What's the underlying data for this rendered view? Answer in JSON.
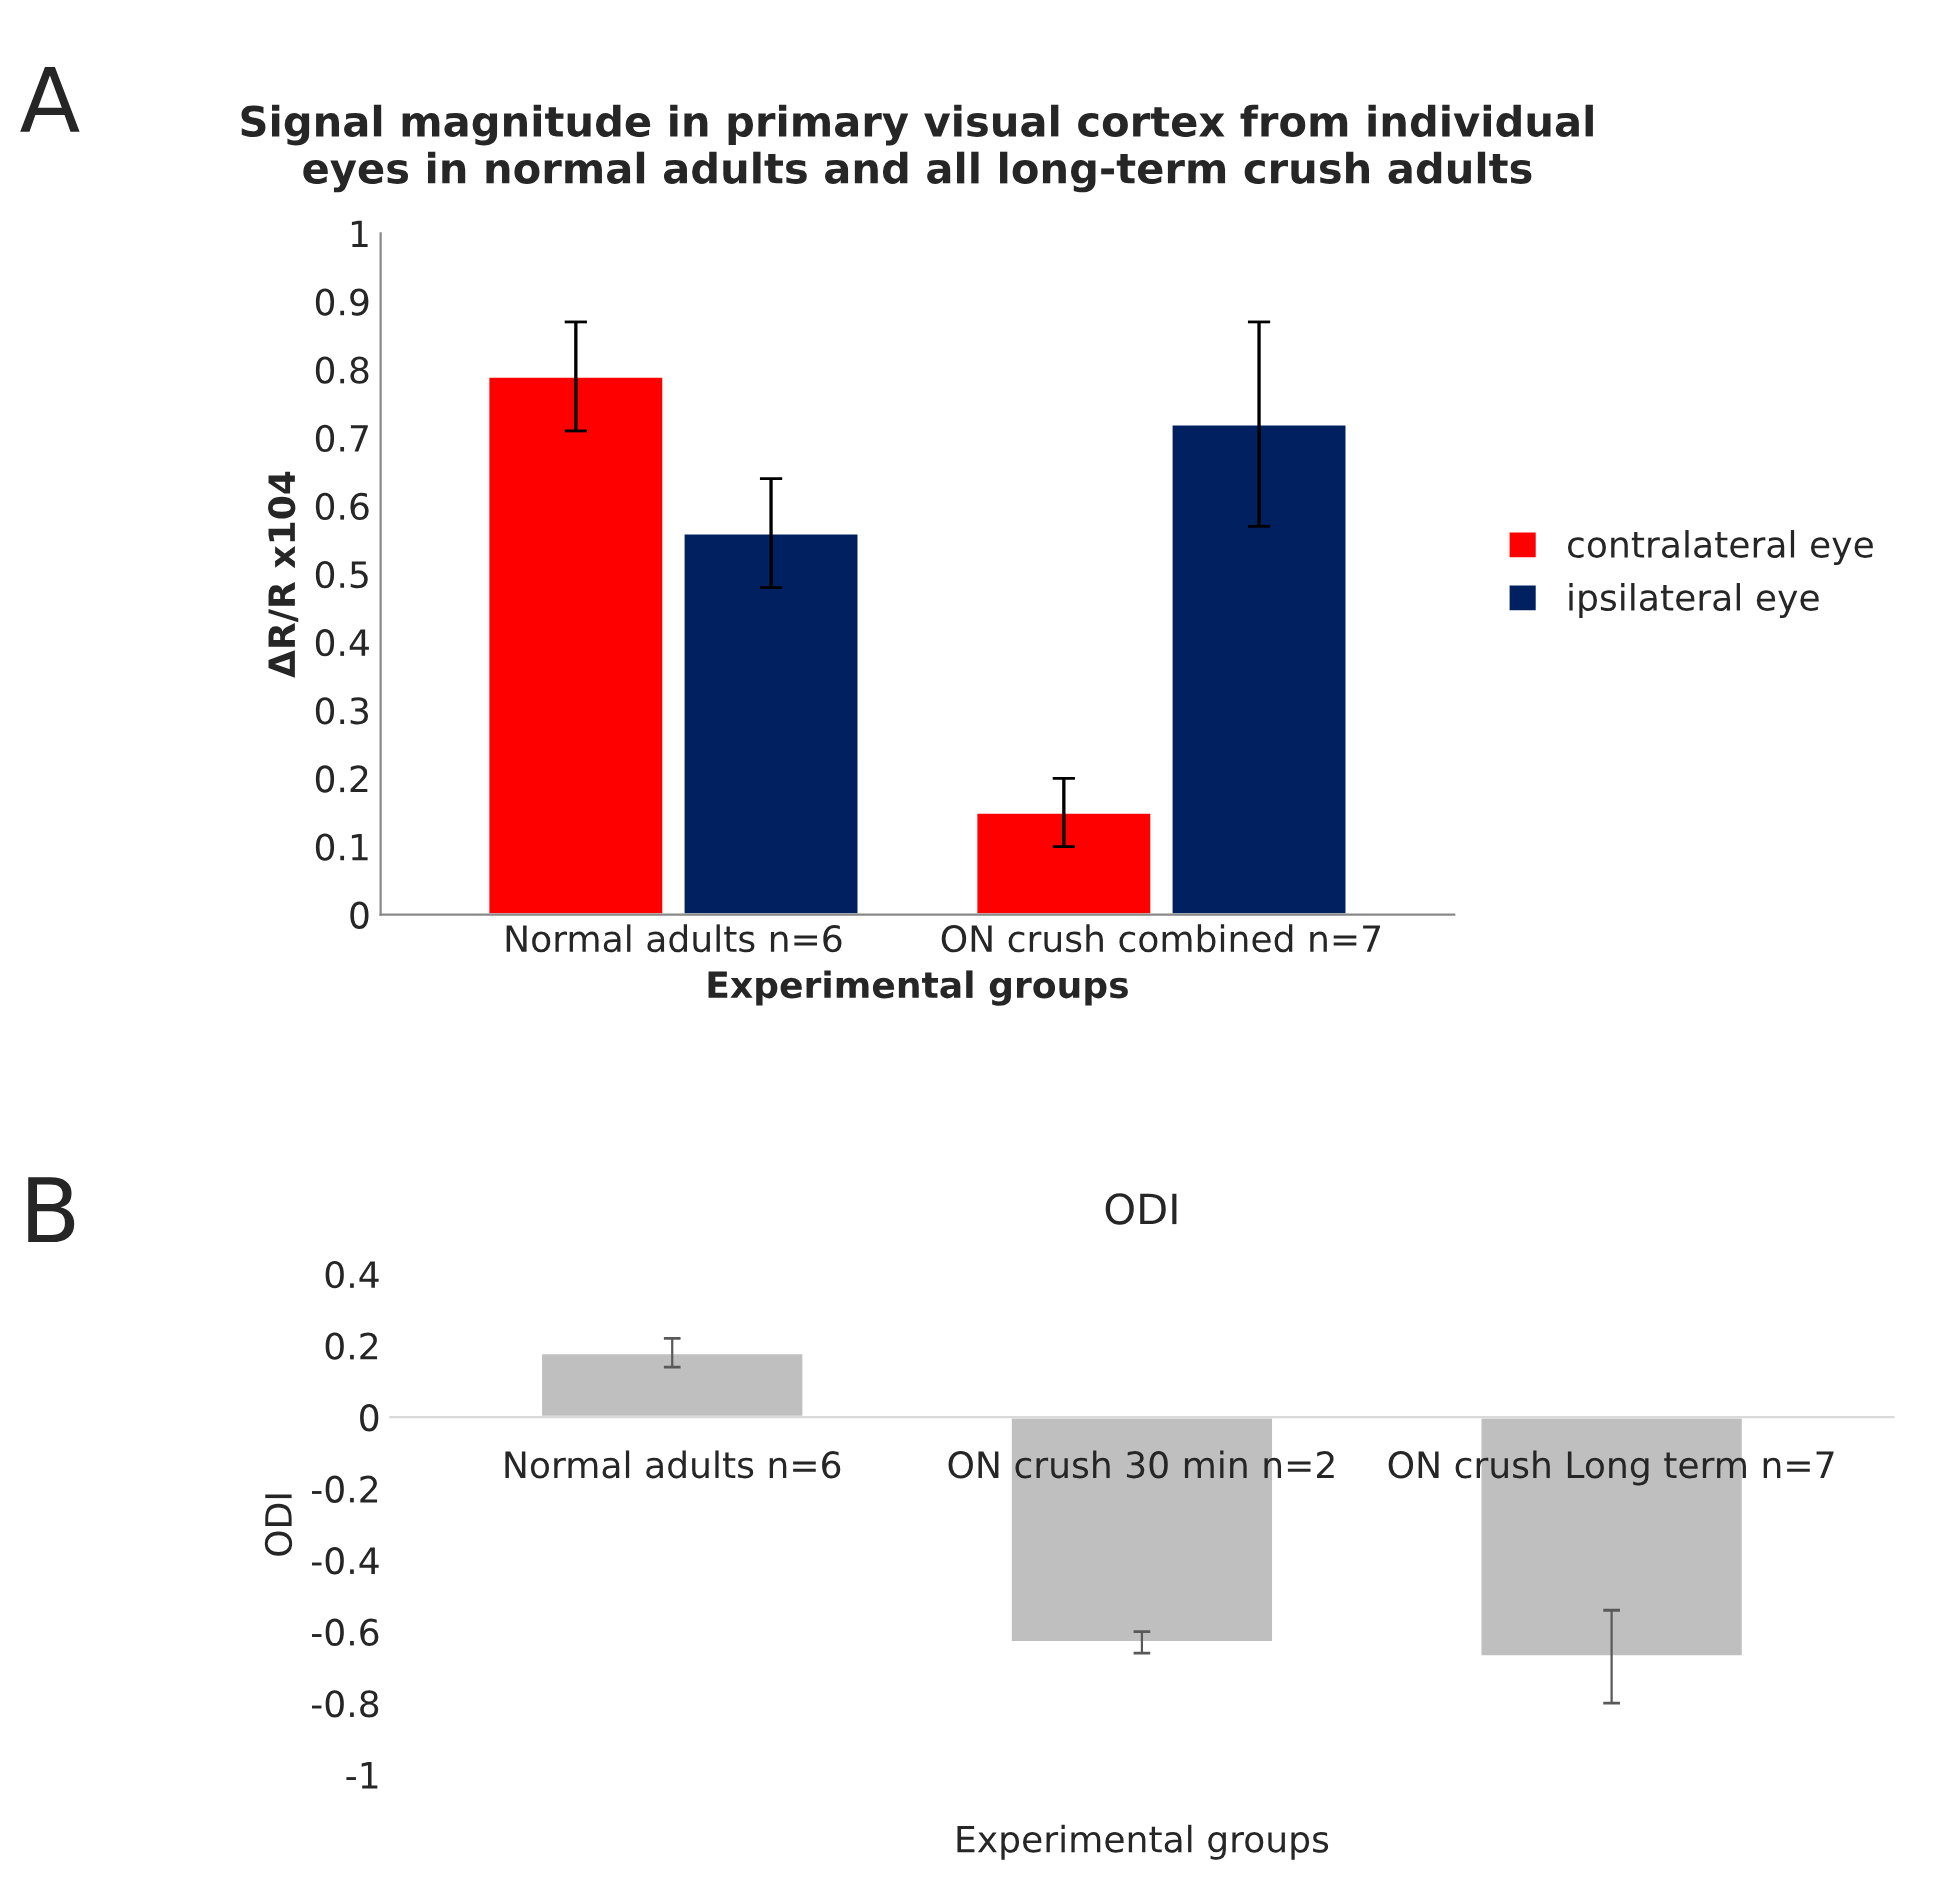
{
  "chart_data": [
    {
      "type": "bar",
      "title": "Signal magnitude in primary visual cortex from individual\neyes in normal adults and all long-term crush adults",
      "xlabel": "Experimental groups",
      "ylabel": "ΔR/R x104",
      "categories": [
        "Normal adults n=6",
        "ON crush combined n=7"
      ],
      "series": [
        {
          "name": "contralateral eye",
          "color": "#ff0000",
          "values": [
            0.79,
            0.15
          ],
          "errors": [
            0.08,
            0.05
          ]
        },
        {
          "name": "ipsilateral eye",
          "color": "#002060",
          "values": [
            0.56,
            0.72
          ],
          "errors": [
            0.08,
            0.15
          ]
        }
      ],
      "ylim": [
        0,
        1
      ],
      "yticks": [
        0,
        0.1,
        0.2,
        0.3,
        0.4,
        0.5,
        0.6,
        0.7,
        0.8,
        0.9,
        1
      ],
      "legend": "right",
      "grid": false,
      "annotations": [
        "A"
      ]
    },
    {
      "type": "bar",
      "title": "ODI",
      "xlabel": "Experimental groups",
      "ylabel": "ODI",
      "categories": [
        "Normal adults n=6",
        "ON crush 30 min n=2",
        "ON crush Long term n=7"
      ],
      "series": [
        {
          "color": "#bfbfbf",
          "values": [
            0.18,
            -0.63,
            -0.67
          ],
          "errors": [
            0.04,
            0.03,
            0.13
          ]
        }
      ],
      "ylim": [
        -1,
        0.4
      ],
      "yticks": [
        -1,
        -0.8,
        -0.6,
        -0.4,
        -0.2,
        0,
        0.2,
        0.4
      ],
      "legend": false,
      "grid": false,
      "annotations": [
        "B"
      ]
    }
  ]
}
